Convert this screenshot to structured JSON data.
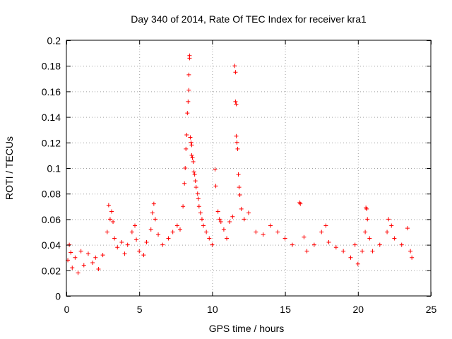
{
  "chart_data": {
    "type": "scatter",
    "title": "Day 340 of 2014, Rate Of TEC Index for receiver kra1",
    "xlabel": "GPS time / hours",
    "ylabel": "ROTI / TECUs",
    "xlim": [
      0,
      25
    ],
    "ylim": [
      0,
      0.2
    ],
    "x_ticks": [
      0,
      5,
      10,
      15,
      20,
      25
    ],
    "x_tick_labels": [
      "0",
      "5",
      "10",
      "15",
      "20",
      "25"
    ],
    "y_ticks": [
      0,
      0.02,
      0.04,
      0.06,
      0.08,
      0.1,
      0.12,
      0.14,
      0.16,
      0.18,
      0.2
    ],
    "y_tick_labels": [
      "0",
      "0.02",
      "0.04",
      "0.06",
      "0.08",
      "0.1",
      "0.12",
      "0.14",
      "0.16",
      "0.18",
      "0.2"
    ],
    "grid": true,
    "marker": "+",
    "color": "#ff0000",
    "series": [
      {
        "name": "ROTI",
        "points": [
          [
            0.1,
            0.028
          ],
          [
            0.2,
            0.04
          ],
          [
            0.3,
            0.034
          ],
          [
            0.4,
            0.022
          ],
          [
            0.6,
            0.03
          ],
          [
            0.8,
            0.018
          ],
          [
            1.0,
            0.035
          ],
          [
            1.2,
            0.024
          ],
          [
            1.5,
            0.033
          ],
          [
            1.8,
            0.026
          ],
          [
            2.0,
            0.03
          ],
          [
            2.2,
            0.021
          ],
          [
            2.5,
            0.032
          ],
          [
            2.8,
            0.05
          ],
          [
            2.9,
            0.071
          ],
          [
            3.0,
            0.06
          ],
          [
            3.1,
            0.066
          ],
          [
            3.2,
            0.058
          ],
          [
            3.3,
            0.045
          ],
          [
            3.5,
            0.038
          ],
          [
            3.8,
            0.042
          ],
          [
            4.0,
            0.033
          ],
          [
            4.2,
            0.04
          ],
          [
            4.5,
            0.05
          ],
          [
            4.7,
            0.055
          ],
          [
            4.8,
            0.044
          ],
          [
            5.0,
            0.035
          ],
          [
            5.3,
            0.032
          ],
          [
            5.5,
            0.042
          ],
          [
            5.8,
            0.052
          ],
          [
            5.9,
            0.065
          ],
          [
            6.0,
            0.072
          ],
          [
            6.1,
            0.06
          ],
          [
            6.3,
            0.048
          ],
          [
            6.6,
            0.04
          ],
          [
            7.0,
            0.045
          ],
          [
            7.3,
            0.05
          ],
          [
            7.6,
            0.055
          ],
          [
            7.8,
            0.052
          ],
          [
            8.0,
            0.07
          ],
          [
            8.1,
            0.088
          ],
          [
            8.15,
            0.1
          ],
          [
            8.2,
            0.115
          ],
          [
            8.25,
            0.126
          ],
          [
            8.3,
            0.143
          ],
          [
            8.35,
            0.152
          ],
          [
            8.4,
            0.161
          ],
          [
            8.4,
            0.173
          ],
          [
            8.45,
            0.186
          ],
          [
            8.45,
            0.188
          ],
          [
            8.5,
            0.124
          ],
          [
            8.55,
            0.12
          ],
          [
            8.6,
            0.118
          ],
          [
            8.6,
            0.11
          ],
          [
            8.65,
            0.108
          ],
          [
            8.7,
            0.105
          ],
          [
            8.75,
            0.097
          ],
          [
            8.8,
            0.095
          ],
          [
            8.85,
            0.09
          ],
          [
            8.9,
            0.085
          ],
          [
            9.0,
            0.08
          ],
          [
            9.05,
            0.076
          ],
          [
            9.1,
            0.07
          ],
          [
            9.2,
            0.065
          ],
          [
            9.3,
            0.06
          ],
          [
            9.4,
            0.055
          ],
          [
            9.6,
            0.05
          ],
          [
            9.8,
            0.045
          ],
          [
            10.0,
            0.04
          ],
          [
            10.2,
            0.099
          ],
          [
            10.25,
            0.086
          ],
          [
            10.4,
            0.066
          ],
          [
            10.5,
            0.06
          ],
          [
            10.6,
            0.058
          ],
          [
            10.8,
            0.052
          ],
          [
            11.0,
            0.045
          ],
          [
            11.2,
            0.058
          ],
          [
            11.4,
            0.062
          ],
          [
            11.55,
            0.18
          ],
          [
            11.6,
            0.175
          ],
          [
            11.6,
            0.152
          ],
          [
            11.65,
            0.15
          ],
          [
            11.65,
            0.125
          ],
          [
            11.7,
            0.12
          ],
          [
            11.75,
            0.115
          ],
          [
            11.8,
            0.095
          ],
          [
            11.85,
            0.085
          ],
          [
            11.9,
            0.079
          ],
          [
            12.0,
            0.068
          ],
          [
            12.2,
            0.06
          ],
          [
            12.5,
            0.065
          ],
          [
            13.0,
            0.05
          ],
          [
            13.5,
            0.048
          ],
          [
            14.0,
            0.055
          ],
          [
            14.5,
            0.05
          ],
          [
            15.0,
            0.045
          ],
          [
            15.5,
            0.04
          ],
          [
            16.0,
            0.073
          ],
          [
            16.05,
            0.072
          ],
          [
            16.3,
            0.046
          ],
          [
            16.5,
            0.035
          ],
          [
            17.0,
            0.04
          ],
          [
            17.5,
            0.05
          ],
          [
            17.8,
            0.055
          ],
          [
            18.0,
            0.042
          ],
          [
            18.5,
            0.038
          ],
          [
            19.0,
            0.035
          ],
          [
            19.5,
            0.03
          ],
          [
            19.8,
            0.04
          ],
          [
            20.0,
            0.025
          ],
          [
            20.3,
            0.035
          ],
          [
            20.5,
            0.05
          ],
          [
            20.55,
            0.069
          ],
          [
            20.6,
            0.068
          ],
          [
            20.65,
            0.06
          ],
          [
            20.8,
            0.045
          ],
          [
            21.0,
            0.035
          ],
          [
            21.5,
            0.04
          ],
          [
            22.0,
            0.05
          ],
          [
            22.1,
            0.06
          ],
          [
            22.3,
            0.055
          ],
          [
            22.5,
            0.045
          ],
          [
            23.0,
            0.04
          ],
          [
            23.4,
            0.053
          ],
          [
            23.6,
            0.035
          ],
          [
            23.7,
            0.03
          ]
        ]
      }
    ]
  }
}
